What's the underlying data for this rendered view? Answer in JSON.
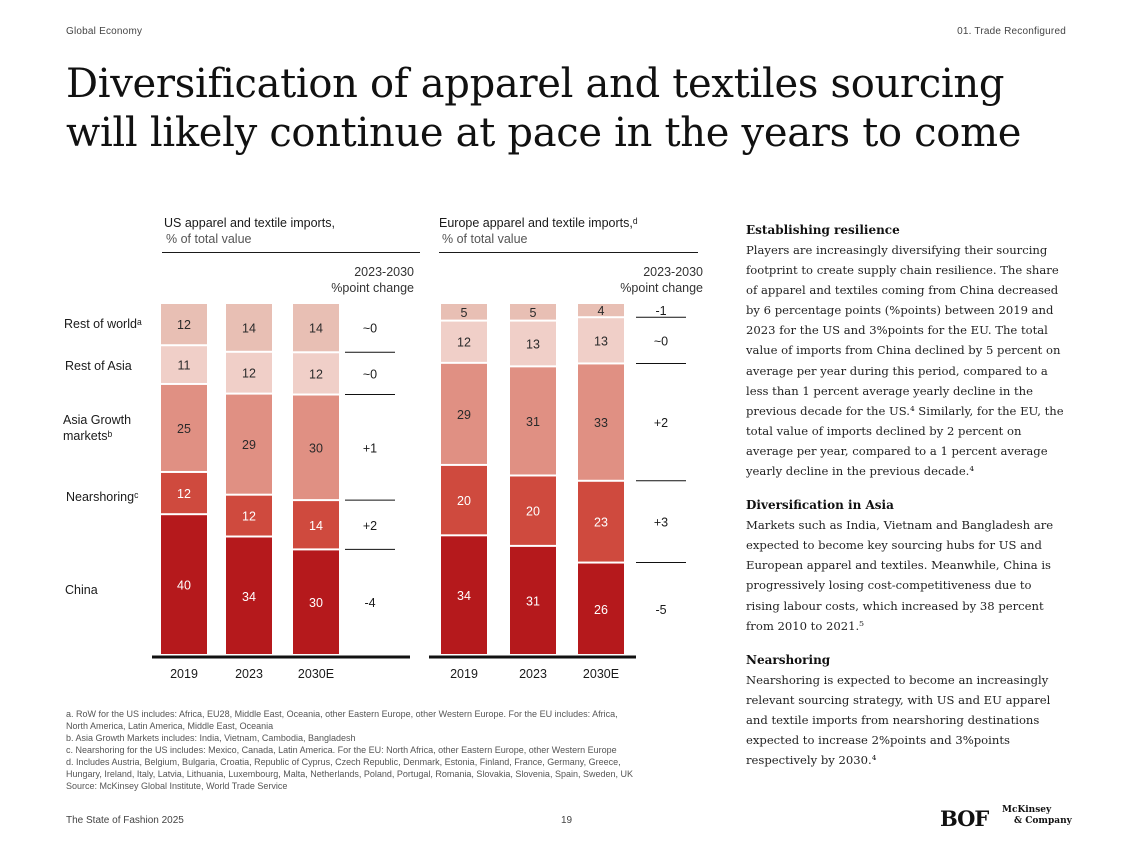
{
  "header": {
    "left": "Global Economy",
    "right": "01. Trade Reconfigured"
  },
  "title_line1": "Diversification of apparel and textiles sourcing",
  "title_line2": "will likely continue at pace in the years to come",
  "colors": {
    "china": "#b5191c",
    "nearshoring": "#cf4a3e",
    "asia_growth": "#e09083",
    "rest_of_asia": "#f0cfc8",
    "rest_of_world": "#e8bfb4"
  },
  "row_labels": {
    "rest_of_world": "Rest of worldᵃ",
    "rest_of_asia": "Rest of Asia",
    "asia_growth_1": "Asia Growth",
    "asia_growth_2": "marketsᵇ",
    "nearshoring": "Nearshoringᶜ",
    "china": "China"
  },
  "chart_data": [
    {
      "type": "bar",
      "title": "US apparel and textile imports,",
      "subtitle": "% of total value",
      "change_header_1": "2023-2030",
      "change_header_2": "%point change",
      "categories": [
        "2019",
        "2023",
        "2030E"
      ],
      "series": [
        {
          "name": "China",
          "values": [
            40,
            34,
            30
          ],
          "change": "-4"
        },
        {
          "name": "Nearshoring",
          "values": [
            12,
            12,
            14
          ],
          "change": "+2"
        },
        {
          "name": "Asia Growth markets",
          "values": [
            25,
            29,
            30
          ],
          "change": "+1"
        },
        {
          "name": "Rest of Asia",
          "values": [
            11,
            12,
            12
          ],
          "change": "~0"
        },
        {
          "name": "Rest of world",
          "values": [
            12,
            14,
            14
          ],
          "change": "~0"
        }
      ]
    },
    {
      "type": "bar",
      "title": "Europe apparel and textile imports,ᵈ",
      "subtitle": "% of total value",
      "change_header_1": "2023-2030",
      "change_header_2": "%point change",
      "categories": [
        "2019",
        "2023",
        "2030E"
      ],
      "series": [
        {
          "name": "China",
          "values": [
            34,
            31,
            26
          ],
          "change": "-5"
        },
        {
          "name": "Nearshoring",
          "values": [
            20,
            20,
            23
          ],
          "change": "+3"
        },
        {
          "name": "Asia Growth markets",
          "values": [
            29,
            31,
            33
          ],
          "change": "+2"
        },
        {
          "name": "Rest of Asia",
          "values": [
            12,
            13,
            13
          ],
          "change": "~0"
        },
        {
          "name": "Rest of world",
          "values": [
            5,
            5,
            4
          ],
          "change": "-1"
        }
      ]
    }
  ],
  "sections": [
    {
      "heading": "Establishing resilience",
      "body": "Players are increasingly diversifying their sourcing footprint to create supply chain resilience. The share of apparel and textiles coming from China decreased by 6 percentage points (%points) between 2019 and 2023 for the US and 3%points for the EU. The total value of imports from China declined by 5 percent on average per year during this period, compared to a less than 1 percent average yearly decline in the previous decade for the US.⁴ Similarly, for the EU, the total value of imports declined by 2 percent on average per year, compared to a 1 percent average yearly decline in the previous decade.⁴"
    },
    {
      "heading": "Diversification in Asia",
      "body": "Markets such as India, Vietnam and Bangladesh are expected to become key sourcing hubs for US and European apparel and textiles. Meanwhile, China is progressively losing cost-competitiveness due to rising labour costs, which increased by 38 percent from 2010 to 2021.⁵"
    },
    {
      "heading": "Nearshoring",
      "body": "Nearshoring is expected to become an increasingly relevant sourcing strategy, with US and EU apparel and textile imports from nearshoring destinations expected to increase 2%points and 3%points respectively by 2030.⁴"
    }
  ],
  "footnotes": [
    "a. RoW for the US includes: Africa, EU28, Middle East, Oceania, other Eastern Europe, other Western Europe. For the EU includes: Africa,",
    "North America, Latin America, Middle East, Oceania",
    "b. Asia Growth Markets includes: India, Vietnam, Cambodia, Bangladesh",
    "c. Nearshoring for the US includes: Mexico, Canada, Latin America. For the EU: North Africa, other Eastern Europe, other Western Europe",
    "d. Includes Austria, Belgium, Bulgaria, Croatia, Republic of Cyprus, Czech Republic, Denmark, Estonia, Finland, France, Germany, Greece,",
    "Hungary, Ireland, Italy, Latvia, Lithuania, Luxembourg, Malta, Netherlands, Poland, Portugal, Romania, Slovakia, Slovenia, Spain, Sweden, UK",
    "Source: McKinsey Global Institute, World Trade Service"
  ],
  "footer": {
    "left": "The State of Fashion 2025",
    "page": "19",
    "bof_logo": "BOF",
    "mck_logo_1": "McKinsey",
    "mck_logo_2": "& Company"
  }
}
